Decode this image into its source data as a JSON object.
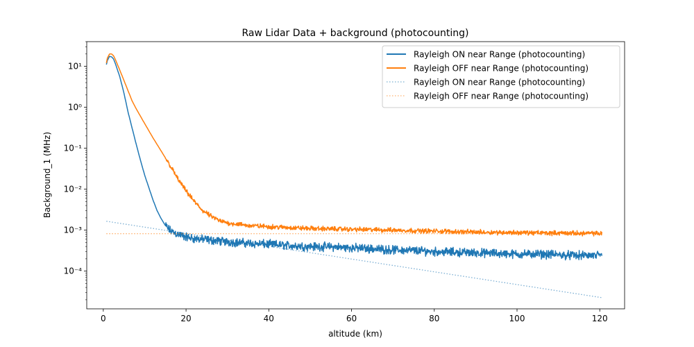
{
  "chart_data": {
    "type": "line",
    "title": "Raw Lidar Data + background (photocounting)",
    "xlabel": "altitude (km)",
    "ylabel": "Background_1 (MHz)",
    "xlim": [
      -4,
      126
    ],
    "ylim": [
      1.2e-05,
      40
    ],
    "yscale": "log",
    "x_ticks": [
      0,
      20,
      40,
      60,
      80,
      100,
      120
    ],
    "y_ticks": [
      0.0001,
      0.001,
      0.01,
      0.1,
      1,
      10
    ],
    "y_tick_labels": [
      "10⁻⁴",
      "10⁻³",
      "10⁻²",
      "10⁻¹",
      "10⁰",
      "10¹"
    ],
    "grid": false,
    "legend_position": "top-right",
    "series": [
      {
        "name": "Rayleigh ON near Range (photocounting)",
        "color": "#1f77b4",
        "style": "solid",
        "x": [
          0.75,
          1,
          1.5,
          2,
          2.5,
          3,
          4,
          5,
          6,
          7,
          8,
          9,
          10,
          11,
          12,
          13,
          14,
          15,
          16,
          17,
          18,
          20,
          22,
          25,
          30,
          35,
          40,
          45,
          50,
          55,
          60,
          65,
          70,
          75,
          80,
          85,
          90,
          95,
          100,
          105,
          110,
          115,
          120.5
        ],
        "y": [
          11,
          14,
          17.5,
          17,
          15,
          11,
          5.5,
          2.2,
          0.75,
          0.3,
          0.12,
          0.05,
          0.022,
          0.011,
          0.0055,
          0.003,
          0.0019,
          0.0013,
          0.001,
          0.00088,
          0.0008,
          0.00068,
          0.00062,
          0.00058,
          0.00052,
          0.00048,
          0.00045,
          0.00042,
          0.0004,
          0.00039,
          0.00037,
          0.00035,
          0.00033,
          0.00032,
          0.0003,
          0.00029,
          0.00028,
          0.00027,
          0.00026,
          0.00026,
          0.00025,
          0.00024,
          0.00024
        ]
      },
      {
        "name": "Rayleigh OFF near Range (photocounting)",
        "color": "#ff7f0e",
        "style": "solid",
        "x": [
          0.75,
          1,
          1.5,
          2,
          2.5,
          3,
          4,
          5,
          6,
          7,
          8,
          10,
          12,
          14,
          16,
          18,
          20,
          22,
          24,
          26,
          28,
          30,
          35,
          40,
          45,
          50,
          60,
          70,
          80,
          90,
          100,
          110,
          120.5
        ],
        "y": [
          12,
          16,
          20,
          20,
          18,
          14,
          8,
          4.5,
          2.5,
          1.4,
          0.9,
          0.4,
          0.18,
          0.085,
          0.04,
          0.018,
          0.009,
          0.005,
          0.003,
          0.0022,
          0.0017,
          0.0015,
          0.0013,
          0.00122,
          0.00115,
          0.0011,
          0.00105,
          0.001,
          0.00095,
          0.0009,
          0.00087,
          0.00085,
          0.00083
        ]
      },
      {
        "name": "Rayleigh ON near Range (photocounting)",
        "color": "#1f77b4",
        "style": "dotted",
        "x": [
          0.75,
          120.5
        ],
        "y": [
          0.00165,
          2.25e-05
        ]
      },
      {
        "name": "Rayleigh OFF near Range (photocounting)",
        "color": "#ff7f0e",
        "style": "dotted",
        "x": [
          0.75,
          120.5
        ],
        "y": [
          0.00082,
          0.00082
        ]
      }
    ]
  }
}
